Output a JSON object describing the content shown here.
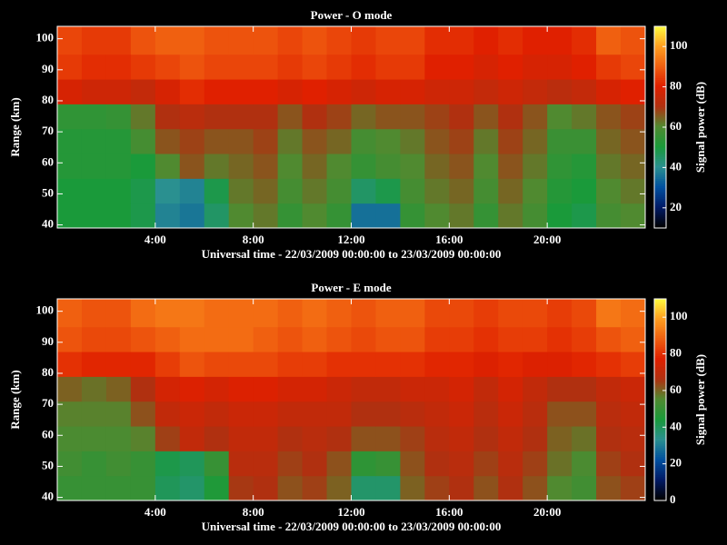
{
  "chart_data": [
    {
      "type": "heatmap",
      "title": "Power - O mode",
      "xlabel": "Universal time - 22/03/2009 00:00:00 to 23/03/2009 00:00:00",
      "ylabel": "Range (km)",
      "colorbar_label": "Signal power (dB)",
      "xbins": [
        0,
        1,
        2,
        3,
        4,
        5,
        6,
        7,
        8,
        9,
        10,
        11,
        12,
        13,
        14,
        15,
        16,
        17,
        18,
        19,
        20,
        21,
        22,
        23,
        24
      ],
      "ybins": [
        39,
        47,
        55,
        63,
        71,
        79,
        87,
        95,
        104
      ],
      "z": [
        [
          50,
          50,
          50,
          48,
          38,
          36,
          45,
          60,
          62,
          55,
          60,
          55,
          35,
          35,
          55,
          60,
          62,
          55,
          62,
          58,
          50,
          48,
          58,
          60
        ],
        [
          50,
          50,
          50,
          48,
          40,
          38,
          48,
          62,
          64,
          58,
          62,
          58,
          45,
          48,
          58,
          62,
          64,
          58,
          64,
          60,
          52,
          50,
          60,
          62
        ],
        [
          52,
          52,
          52,
          50,
          60,
          66,
          62,
          64,
          66,
          60,
          64,
          60,
          55,
          58,
          60,
          64,
          66,
          60,
          66,
          62,
          54,
          52,
          62,
          64
        ],
        [
          52,
          52,
          52,
          58,
          66,
          68,
          66,
          66,
          68,
          62,
          66,
          64,
          58,
          60,
          62,
          66,
          68,
          62,
          68,
          64,
          56,
          56,
          64,
          66
        ],
        [
          54,
          54,
          55,
          62,
          70,
          72,
          70,
          70,
          70,
          66,
          70,
          68,
          64,
          66,
          66,
          68,
          70,
          66,
          70,
          66,
          60,
          62,
          66,
          68
        ],
        [
          78,
          76,
          76,
          74,
          78,
          82,
          80,
          80,
          80,
          78,
          80,
          78,
          76,
          78,
          78,
          76,
          76,
          74,
          76,
          74,
          72,
          74,
          78,
          80
        ],
        [
          84,
          82,
          82,
          84,
          86,
          88,
          86,
          86,
          86,
          84,
          86,
          84,
          82,
          84,
          84,
          80,
          80,
          78,
          80,
          78,
          78,
          80,
          84,
          86
        ],
        [
          86,
          84,
          84,
          88,
          90,
          90,
          88,
          88,
          88,
          86,
          88,
          86,
          84,
          86,
          86,
          82,
          82,
          80,
          82,
          80,
          80,
          82,
          90,
          88
        ]
      ],
      "xlim": [
        0,
        24
      ],
      "xticks": [
        {
          "value": 4,
          "label": "4:00"
        },
        {
          "value": 8,
          "label": "8:00"
        },
        {
          "value": 12,
          "label": "12:00"
        },
        {
          "value": 16,
          "label": "16:00"
        },
        {
          "value": 20,
          "label": "20:00"
        }
      ],
      "ylim": [
        39,
        104
      ],
      "yticks": [
        40,
        50,
        60,
        70,
        80,
        90,
        100
      ],
      "clim": [
        10,
        110
      ],
      "cticks": [
        20,
        40,
        60,
        80,
        100
      ],
      "colormap": [
        "#000000",
        "#001a66",
        "#0050a0",
        "#2a9090",
        "#1a9a3a",
        "#508a30",
        "#b03010",
        "#e02000",
        "#f06010",
        "#ffa020",
        "#ffff40"
      ]
    },
    {
      "type": "heatmap",
      "title": "Power - E mode",
      "xlabel": "Universal time - 22/03/2009 00:00:00 to 23/03/2009 00:00:00",
      "ylabel": "Range (km)",
      "colorbar_label": "Signal power (dB)",
      "xbins": [
        0,
        1,
        2,
        3,
        4,
        5,
        6,
        7,
        8,
        9,
        10,
        11,
        12,
        13,
        14,
        15,
        16,
        17,
        18,
        19,
        20,
        21,
        22,
        23,
        24
      ],
      "ybins": [
        39,
        47,
        55,
        63,
        71,
        79,
        87,
        95,
        104
      ],
      "z": [
        [
          50,
          50,
          50,
          50,
          40,
          38,
          45,
          65,
          66,
          62,
          64,
          60,
          38,
          38,
          60,
          64,
          66,
          62,
          66,
          62,
          55,
          52,
          62,
          64
        ],
        [
          52,
          50,
          52,
          50,
          42,
          40,
          50,
          68,
          68,
          64,
          66,
          62,
          48,
          50,
          62,
          66,
          68,
          64,
          68,
          64,
          58,
          54,
          64,
          66
        ],
        [
          54,
          54,
          54,
          56,
          64,
          70,
          66,
          70,
          70,
          66,
          68,
          66,
          62,
          62,
          64,
          68,
          70,
          66,
          70,
          66,
          60,
          58,
          66,
          68
        ],
        [
          56,
          56,
          56,
          62,
          70,
          72,
          70,
          72,
          72,
          70,
          70,
          70,
          66,
          66,
          68,
          70,
          72,
          68,
          72,
          68,
          62,
          62,
          68,
          70
        ],
        [
          60,
          58,
          60,
          66,
          74,
          76,
          74,
          76,
          76,
          74,
          74,
          72,
          70,
          70,
          72,
          72,
          74,
          70,
          74,
          70,
          66,
          66,
          70,
          72
        ],
        [
          80,
          78,
          78,
          78,
          82,
          86,
          84,
          84,
          84,
          82,
          82,
          80,
          80,
          80,
          80,
          78,
          78,
          76,
          78,
          76,
          76,
          78,
          80,
          82
        ],
        [
          86,
          84,
          84,
          86,
          88,
          90,
          90,
          90,
          88,
          86,
          88,
          86,
          84,
          86,
          86,
          82,
          82,
          80,
          82,
          82,
          80,
          82,
          86,
          88
        ],
        [
          88,
          86,
          86,
          90,
          92,
          92,
          90,
          90,
          90,
          88,
          90,
          88,
          86,
          88,
          88,
          84,
          84,
          82,
          84,
          84,
          82,
          84,
          92,
          90
        ]
      ],
      "xlim": [
        0,
        24
      ],
      "xticks": [
        {
          "value": 4,
          "label": "4:00"
        },
        {
          "value": 8,
          "label": "8:00"
        },
        {
          "value": 12,
          "label": "12:00"
        },
        {
          "value": 16,
          "label": "16:00"
        },
        {
          "value": 20,
          "label": "20:00"
        }
      ],
      "ylim": [
        39,
        104
      ],
      "yticks": [
        40,
        50,
        60,
        70,
        80,
        90,
        100
      ],
      "clim": [
        0,
        110
      ],
      "cticks": [
        0,
        20,
        40,
        60,
        80,
        100
      ],
      "colormap": [
        "#000000",
        "#001a66",
        "#0050a0",
        "#2a9090",
        "#1a9a3a",
        "#508a30",
        "#b03010",
        "#e02000",
        "#f06010",
        "#ffa020",
        "#ffff40"
      ]
    }
  ]
}
